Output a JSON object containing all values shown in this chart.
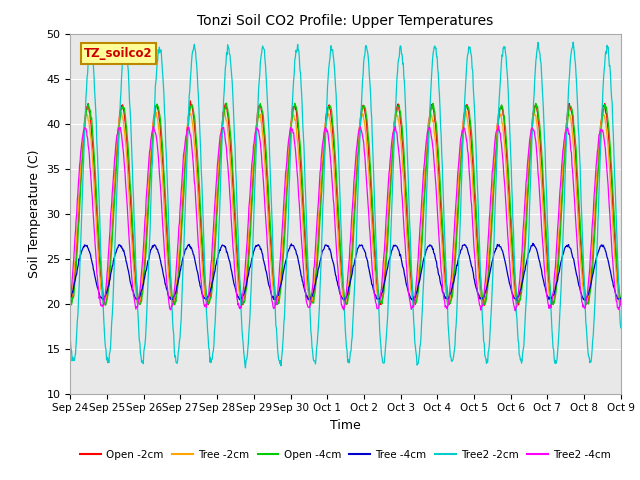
{
  "title": "Tonzi Soil CO2 Profile: Upper Temperatures",
  "xlabel": "Time",
  "ylabel": "Soil Temperature (C)",
  "ylim": [
    10,
    50
  ],
  "annotation_text": "TZ_soilco2",
  "annotation_color": "#cc0000",
  "annotation_bg": "#ffff99",
  "annotation_border": "#bb8800",
  "background_color": "#e8e8e8",
  "tick_labels": [
    "Sep 24",
    "Sep 25",
    "Sep 26",
    "Sep 27",
    "Sep 28",
    "Sep 29",
    "Sep 30",
    "Oct 1",
    "Oct 2",
    "Oct 3",
    "Oct 4",
    "Oct 5",
    "Oct 6",
    "Oct 7",
    "Oct 8",
    "Oct 9"
  ],
  "series": [
    {
      "label": "Open -2cm",
      "color": "#ff0000",
      "amp": 11.0,
      "mean": 31.0,
      "phase": 0.0,
      "noise": 0.15
    },
    {
      "label": "Tree -2cm",
      "color": "#ffa500",
      "amp": 10.5,
      "mean": 30.5,
      "phase": 0.15,
      "noise": 0.15
    },
    {
      "label": "Open -4cm",
      "color": "#00cc00",
      "amp": 11.0,
      "mean": 31.0,
      "phase": -0.15,
      "noise": 0.15
    },
    {
      "label": "Tree -4cm",
      "color": "#0000cc",
      "amp": 3.0,
      "mean": 23.5,
      "phase": 0.4,
      "noise": 0.08
    },
    {
      "label": "Tree2 -2cm",
      "color": "#00cccc",
      "amp": 17.5,
      "mean": 31.0,
      "phase": -0.55,
      "noise": 0.25
    },
    {
      "label": "Tree2 -4cm",
      "color": "#ff00ff",
      "amp": 10.0,
      "mean": 29.5,
      "phase": 0.5,
      "noise": 0.15
    }
  ],
  "n_points": 960,
  "period": 60.0,
  "yticks": [
    10,
    15,
    20,
    25,
    30,
    35,
    40,
    45,
    50
  ]
}
